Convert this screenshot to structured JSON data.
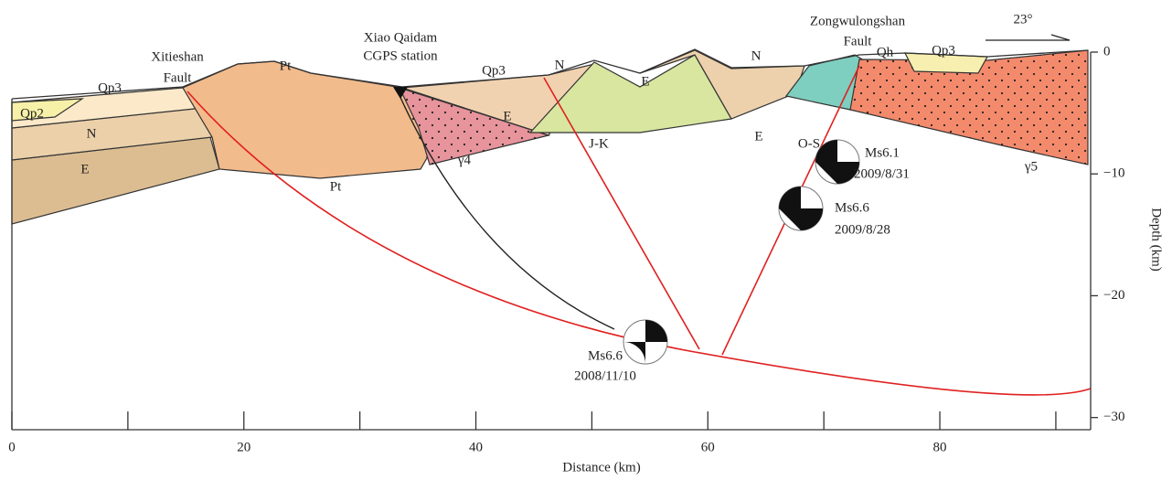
{
  "axes": {
    "x": {
      "label": "Distance (km)",
      "lim": [
        0,
        93
      ],
      "ticks": [
        0,
        20,
        40,
        60,
        80
      ],
      "minor_ticks": [
        10,
        30,
        50,
        70,
        90
      ]
    },
    "y": {
      "label": "Depth (km)",
      "lim": [
        -31,
        0
      ],
      "ticks": [
        0,
        {
          "value": -10,
          "label": "−10"
        },
        {
          "value": -20,
          "label": "−20"
        },
        {
          "value": -30,
          "label": "−30"
        }
      ]
    }
  },
  "faults": [
    {
      "lines": [
        "Xitieshan",
        "Fault"
      ]
    },
    {
      "lines": [
        "Zongwulongshan",
        "Fault"
      ]
    }
  ],
  "station": {
    "lines": [
      "Xiao Qaidam",
      "CGPS station"
    ]
  },
  "strike": "23°",
  "units": [
    "Qp3",
    "Qp2",
    "N",
    "E",
    "Pt",
    "Pt",
    "Qp3",
    "E",
    "γ4",
    "N",
    "E",
    "J-K",
    "E",
    "N",
    "O-S",
    "Qh",
    "Qp3",
    "γ5"
  ],
  "earthquakes": [
    {
      "magnitude": "Ms6.6",
      "date": "2008/11/10"
    },
    {
      "magnitude": "Ms6.1",
      "date": "2009/8/31"
    },
    {
      "magnitude": "Ms6.6",
      "date": "2009/8/28"
    }
  ]
}
